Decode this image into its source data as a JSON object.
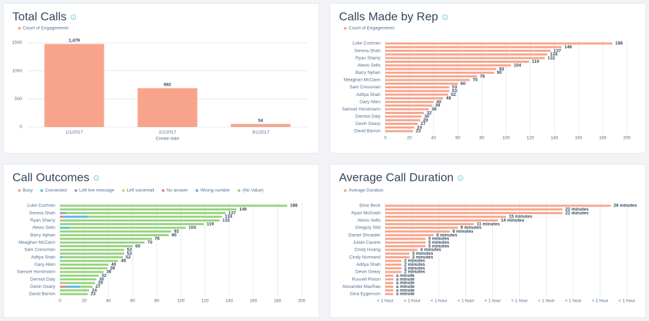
{
  "chart_data": [
    {
      "type": "bar",
      "title": "Total Calls",
      "categories": [
        "1/1/2017",
        "2/1/2017",
        "3/1/2017"
      ],
      "series": [
        {
          "name": "Count of Engagements",
          "color": "#f8a48b",
          "values": [
            1479,
            692,
            54
          ],
          "value_labels": [
            "1,479",
            "692",
            "54"
          ]
        }
      ],
      "xlabel": "Create date",
      "ylim": [
        0,
        1500
      ],
      "yticks": [
        0,
        500,
        1000,
        1500
      ],
      "grid": true
    },
    {
      "type": "hbar",
      "title": "Calls Made by Rep",
      "categories": [
        "Luke Cochran",
        null,
        "Serena Shah",
        null,
        "Ryan Sharry",
        null,
        "Alexis Sells",
        null,
        "Barry Nyhan",
        null,
        "Meaghan McCann",
        null,
        "Sam Cressman",
        null,
        "Aditya Shah",
        null,
        "Gary Allen",
        null,
        "Samuel Horstmann",
        null,
        "Dermot Daly",
        null,
        "Devin Geary",
        null,
        "David Barron"
      ],
      "series": [
        {
          "name": "Count of Engagements",
          "color": "#f8a48b",
          "values": [
            188,
            146,
            137,
            134,
            132,
            119,
            104,
            92,
            90,
            76,
            70,
            60,
            53,
            53,
            52,
            48,
            40,
            39,
            36,
            32,
            30,
            29,
            27,
            24,
            23
          ]
        }
      ],
      "xlim": [
        0,
        200
      ],
      "xticks": [
        0,
        20,
        40,
        60,
        80,
        100,
        120,
        140,
        160,
        180,
        200
      ],
      "grid": true
    },
    {
      "type": "hbar",
      "stacked": true,
      "title": "Call Outcomes",
      "categories": [
        "Luke Cochran",
        null,
        "Serena Shah",
        null,
        "Ryan Sharry",
        null,
        "Alexis Sells",
        null,
        "Barry Nyhan",
        null,
        "Meaghan McCann",
        null,
        "Sam Cressman",
        null,
        "Aditya Shah",
        null,
        "Gary Allen",
        null,
        "Samuel Horstmann",
        null,
        "Dermot Daly",
        null,
        "Devin Geary",
        null,
        "David Barron"
      ],
      "series": [
        {
          "name": "Busy",
          "color": "#f8a48b",
          "values": [
            0,
            0,
            0,
            0,
            0,
            0,
            0,
            0,
            0,
            0,
            0,
            0,
            0,
            0,
            0,
            0,
            0,
            0,
            0,
            0,
            0,
            0,
            0,
            0,
            0
          ]
        },
        {
          "name": "Connected",
          "color": "#4fc6cc",
          "values": [
            0,
            0,
            2,
            0,
            0,
            0,
            8,
            0,
            0,
            0,
            0,
            0,
            0,
            0,
            2,
            0,
            0,
            0,
            0,
            0,
            0,
            0,
            0,
            0,
            0
          ]
        },
        {
          "name": "Left live message",
          "color": "#a991d4",
          "values": [
            0,
            0,
            3,
            0,
            0,
            0,
            0,
            0,
            0,
            0,
            0,
            0,
            0,
            0,
            0,
            0,
            0,
            0,
            0,
            0,
            0,
            0,
            0,
            0,
            0
          ]
        },
        {
          "name": "Left voicemail",
          "color": "#f5c26b",
          "values": [
            0,
            0,
            0,
            0,
            0,
            0,
            0,
            0,
            0,
            0,
            0,
            0,
            0,
            0,
            0,
            0,
            0,
            0,
            0,
            0,
            0,
            0,
            0,
            0,
            0
          ]
        },
        {
          "name": "No answer",
          "color": "#f2788f",
          "values": [
            0,
            0,
            0,
            3,
            0,
            0,
            0,
            0,
            0,
            0,
            0,
            0,
            0,
            0,
            0,
            0,
            0,
            0,
            0,
            0,
            0,
            0,
            5,
            0,
            0
          ]
        },
        {
          "name": "Wrong number",
          "color": "#5bb5e8",
          "values": [
            0,
            0,
            0,
            20,
            0,
            0,
            0,
            0,
            0,
            0,
            0,
            0,
            0,
            0,
            0,
            0,
            0,
            0,
            0,
            0,
            0,
            0,
            12,
            0,
            0
          ]
        },
        {
          "name": "(No Value)",
          "color": "#97d37e",
          "values": [
            188,
            146,
            132,
            111,
            132,
            119,
            96,
            92,
            90,
            76,
            70,
            60,
            53,
            53,
            50,
            48,
            40,
            39,
            36,
            32,
            30,
            29,
            10,
            24,
            23
          ]
        }
      ],
      "totals": [
        188,
        146,
        137,
        134,
        132,
        119,
        104,
        92,
        90,
        76,
        70,
        60,
        53,
        53,
        52,
        48,
        40,
        39,
        36,
        32,
        30,
        29,
        27,
        24,
        23
      ],
      "xlim": [
        0,
        200
      ],
      "xticks": [
        0,
        20,
        40,
        60,
        80,
        100,
        120,
        140,
        160,
        180,
        200
      ],
      "grid": true
    },
    {
      "type": "hbar",
      "title": "Average Call Duration",
      "categories": [
        "Elise Beck",
        null,
        "Ryan McGrath",
        null,
        "Alexis Sells",
        null,
        "Gregory Stitt",
        null,
        "Daniel Shnaider",
        null,
        "Julian Cacere",
        null,
        "Cindy Huang",
        null,
        "Cindy Normand",
        null,
        "Aditya Shah",
        null,
        "Devin Geary",
        null,
        "Russell Piston",
        null,
        "Alexander MacRae",
        null,
        "Gina Eygenson"
      ],
      "series": [
        {
          "name": "Average Duration",
          "color": "#f8a48b",
          "values": [
            1680,
            1320,
            1320,
            900,
            840,
            660,
            540,
            480,
            360,
            300,
            300,
            300,
            240,
            180,
            180,
            120,
            120,
            120,
            120,
            60,
            60,
            60,
            60,
            60,
            60
          ],
          "value_labels": [
            "28 minutes",
            "22 minutes",
            "22 minutes",
            "15 minutes",
            "14 minutes",
            "11 minutes",
            "9 minutes",
            "8 minutes",
            "6 minutes",
            "5 minutes",
            "5 minutes",
            "5 minutes",
            "4 minutes",
            "3 minutes",
            "3 minutes",
            "2 minutes",
            "2 minutes",
            "2 minutes",
            "2 minutes",
            "a minute",
            "a minute",
            "a minute",
            "a minute",
            "a minute",
            "a minute"
          ]
        }
      ],
      "xlim": [
        0,
        1800
      ],
      "xticks": [
        {
          "value": 0,
          "label": "< 1 hour"
        },
        {
          "value": 200,
          "label": "< 1 hour"
        },
        {
          "value": 400,
          "label": "< 1 hour"
        },
        {
          "value": 600,
          "label": "< 1 hour"
        },
        {
          "value": 800,
          "label": "< 1 hour"
        },
        {
          "value": 1000,
          "label": "< 1 hour"
        },
        {
          "value": 1200,
          "label": "< 1 hour"
        },
        {
          "value": 1400,
          "label": "< 1 hour"
        },
        {
          "value": 1600,
          "label": "< 1 hour"
        },
        {
          "value": 1800,
          "label": "< 1 hour"
        }
      ],
      "grid": true
    }
  ]
}
